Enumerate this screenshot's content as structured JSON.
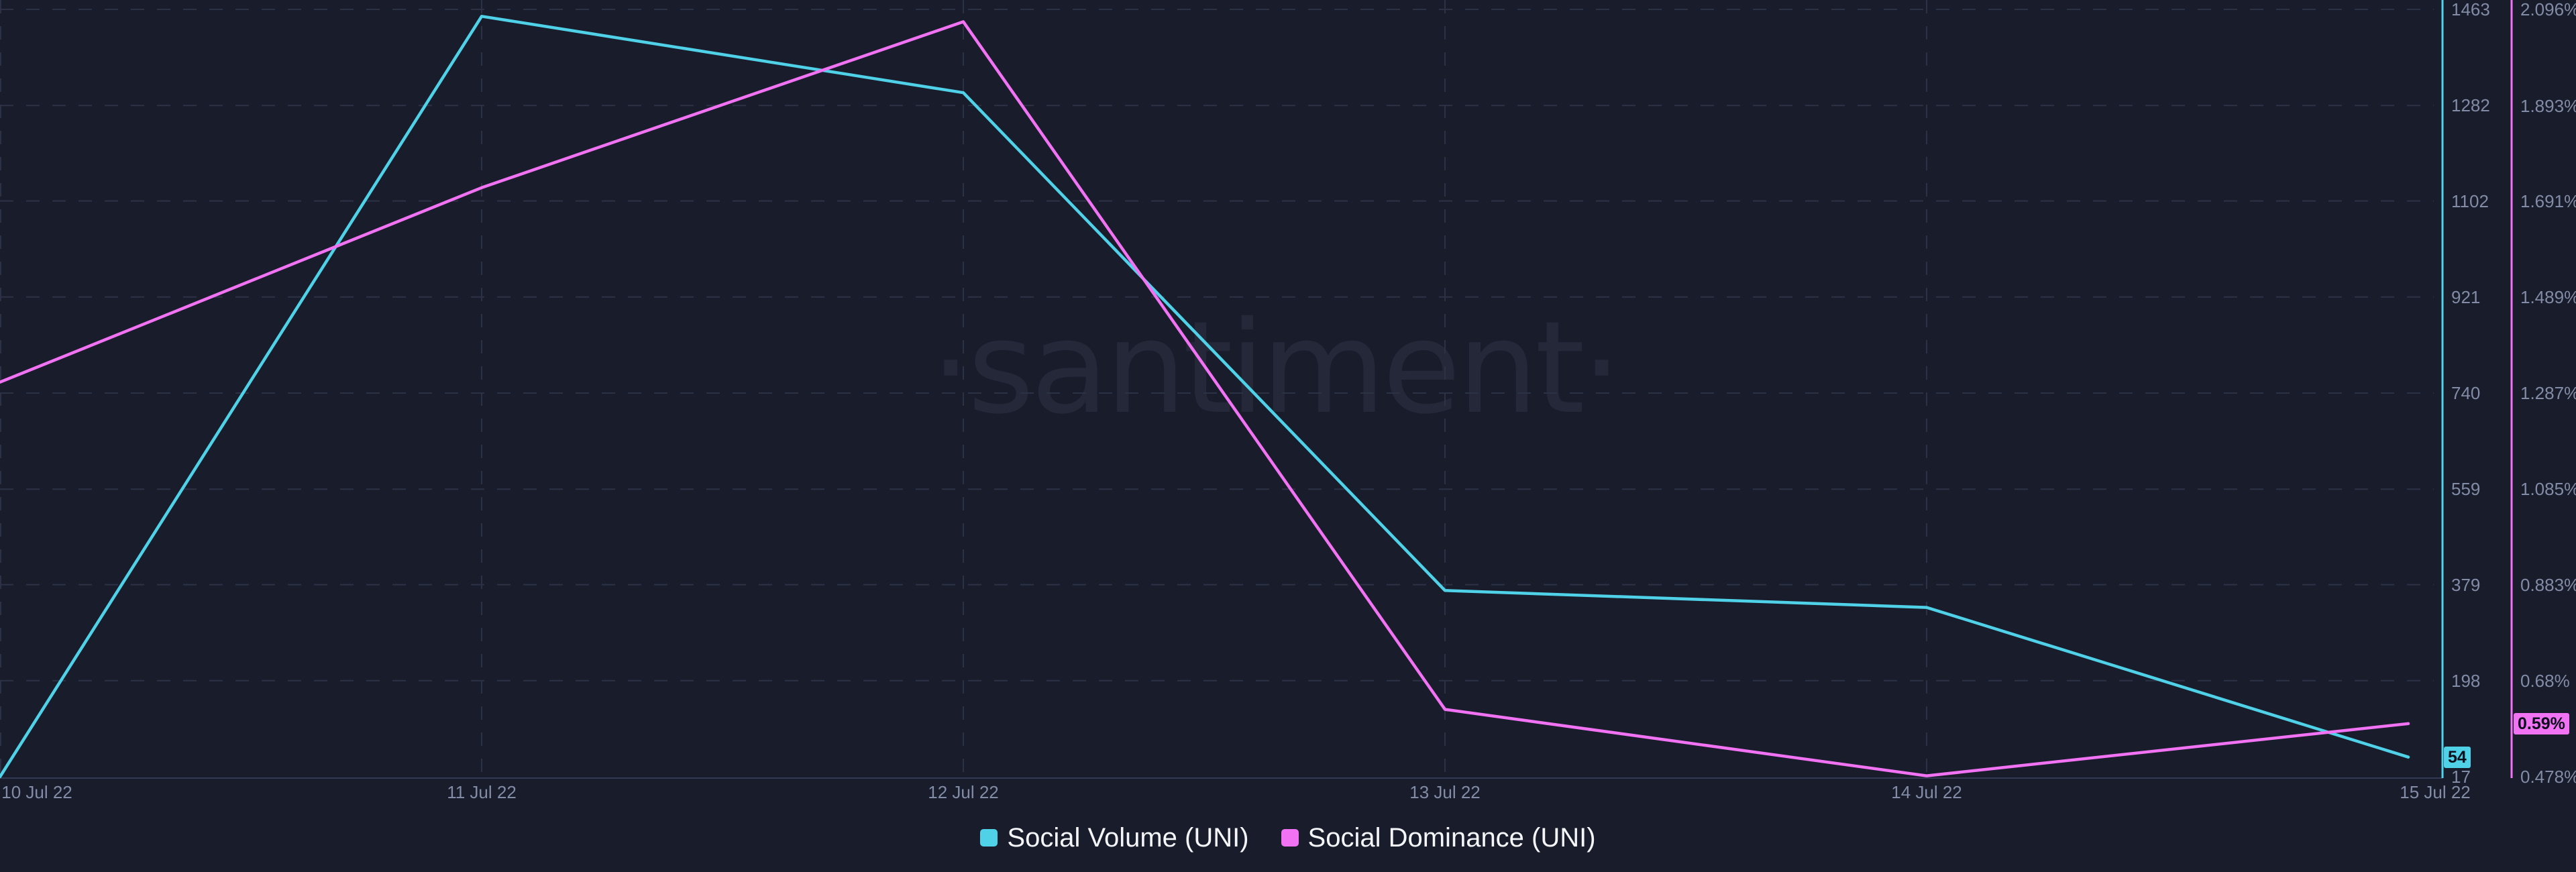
{
  "watermark": {
    "text": "·santiment·"
  },
  "legend": {
    "items": [
      {
        "label": "Social Volume (UNI)",
        "color": "#4FD1E8"
      },
      {
        "label": "Social Dominance (UNI)",
        "color": "#F173F3"
      }
    ]
  },
  "badges": {
    "volume": "54",
    "dominance": "0.59%"
  },
  "axes": {
    "volume_ticks": [
      "1463",
      "1282",
      "1102",
      "921",
      "740",
      "559",
      "379",
      "198",
      "17"
    ],
    "dominance_ticks": [
      "2.096%",
      "1.893%",
      "1.691%",
      "1.489%",
      "1.287%",
      "1.085%",
      "0.883%",
      "0.68%",
      "0.478%"
    ],
    "x_ticks": [
      "10 Jul 22",
      "11 Jul 22",
      "12 Jul 22",
      "13 Jul 22",
      "14 Jul 22",
      "15 Jul 22"
    ]
  },
  "colors": {
    "background": "#191c2b",
    "gridline": "#2c3145",
    "axis_line": "#333952",
    "tick_text": "#828CA6",
    "legend_text": "#f5f6fa",
    "volume_accent": "#4FD1E8",
    "dominance_accent": "#F173F3"
  },
  "chart_data": {
    "type": "line",
    "categories": [
      "10 Jul 22",
      "11 Jul 22",
      "12 Jul 22",
      "13 Jul 22",
      "14 Jul 22",
      "15 Jul 22"
    ],
    "series": [
      {
        "name": "Social Volume (UNI)",
        "axis": "volume",
        "color": "#4FD1E8",
        "values": [
          17,
          1450,
          1306,
          368,
          336,
          54
        ]
      },
      {
        "name": "Social Dominance (UNI)",
        "axis": "dominance",
        "color": "#F173F3",
        "values": [
          1.31,
          1.72,
          2.07,
          0.62,
          0.48,
          0.59
        ],
        "unit": "%"
      }
    ],
    "axis_ranges": {
      "volume": [
        17,
        1463
      ],
      "dominance": [
        0.478,
        2.096
      ]
    },
    "volume_tick_values": [
      1463,
      1282,
      1102,
      921,
      740,
      559,
      379,
      198,
      17
    ],
    "dominance_tick_values": [
      2.096,
      1.893,
      1.691,
      1.489,
      1.287,
      1.085,
      0.883,
      0.68,
      0.478
    ],
    "current_values": {
      "volume": 54,
      "dominance": 0.59
    },
    "title": "",
    "xlabel": "",
    "ylabel_right_inner": "Social Volume (UNI)",
    "ylabel_right_outer": "Social Dominance (UNI) %",
    "grid": "dashed",
    "legend_position": "bottom-center",
    "watermark": "·santiment·"
  }
}
